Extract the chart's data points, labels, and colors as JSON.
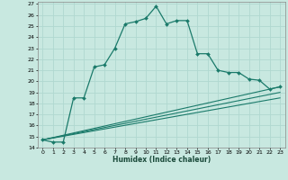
{
  "title": "",
  "xlabel": "Humidex (Indice chaleur)",
  "bg_color": "#c8e8e0",
  "grid_color": "#b0d8d0",
  "line_color": "#1a7a6a",
  "xlim": [
    -0.5,
    23.5
  ],
  "ylim": [
    14,
    27.2
  ],
  "main_x": [
    0,
    1,
    2,
    3,
    4,
    5,
    6,
    7,
    8,
    9,
    10,
    11,
    12,
    13,
    14,
    15,
    16,
    17,
    18,
    19,
    20,
    21,
    22,
    23
  ],
  "main_y": [
    14.7,
    14.5,
    14.5,
    18.5,
    18.5,
    21.3,
    21.5,
    23.0,
    25.2,
    25.4,
    25.7,
    26.8,
    25.2,
    25.5,
    25.5,
    22.5,
    22.5,
    21.0,
    20.8,
    20.8,
    20.2,
    20.1,
    19.3,
    19.5
  ],
  "line2_x": [
    0,
    23
  ],
  "line2_y": [
    14.7,
    19.5
  ],
  "line3_x": [
    0,
    23
  ],
  "line3_y": [
    14.7,
    19.0
  ],
  "line4_x": [
    0,
    23
  ],
  "line4_y": [
    14.7,
    18.5
  ]
}
